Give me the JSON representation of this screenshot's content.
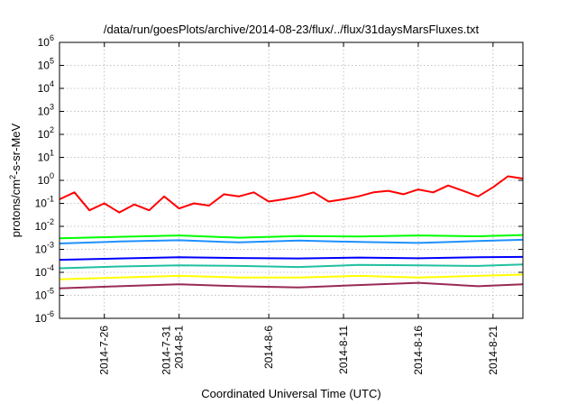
{
  "chart_data": {
    "type": "line",
    "title": "/data/run/goesPlots/archive/2014-08-23/flux/../flux/31daysMarsFluxes.txt",
    "xlabel": "Coordinated Universal Time (UTC)",
    "ylabel_main": "protons/cm",
    "ylabel_sup": "2",
    "ylabel_rest": "-s-sr-MeV",
    "xlim": [
      "2014-07-23",
      "2014-08-23"
    ],
    "ylim": [
      1e-06,
      1000000.0
    ],
    "y_scale": "log",
    "grid": true,
    "y_tick_labels": [
      {
        "base": "10",
        "exp": "-6",
        "value": 1e-06
      },
      {
        "base": "10",
        "exp": "-5",
        "value": 1e-05
      },
      {
        "base": "10",
        "exp": "-4",
        "value": 0.0001
      },
      {
        "base": "10",
        "exp": "-3",
        "value": 0.001
      },
      {
        "base": "10",
        "exp": "-2",
        "value": 0.01
      },
      {
        "base": "10",
        "exp": "-1",
        "value": 0.1
      },
      {
        "base": "10",
        "exp": "0",
        "value": 1
      },
      {
        "base": "10",
        "exp": "1",
        "value": 10
      },
      {
        "base": "10",
        "exp": "2",
        "value": 100
      },
      {
        "base": "10",
        "exp": "3",
        "value": 1000
      },
      {
        "base": "10",
        "exp": "4",
        "value": 10000
      },
      {
        "base": "10",
        "exp": "5",
        "value": 100000
      },
      {
        "base": "10",
        "exp": "6",
        "value": 1000000
      }
    ],
    "x_tick_labels": [
      {
        "date": "2014-07-26",
        "lines": [
          "2014-7-26"
        ]
      },
      {
        "date": "2014-07-31",
        "lines": [
          "2014-7-31",
          "2014-8-1"
        ]
      },
      {
        "date": "2014-08-06",
        "lines": [
          "2014-8-6"
        ]
      },
      {
        "date": "2014-08-11",
        "lines": [
          "2014-8-11"
        ]
      },
      {
        "date": "2014-08-16",
        "lines": [
          "2014-8-16"
        ]
      },
      {
        "date": "2014-08-21",
        "lines": [
          "2014-8-21"
        ]
      }
    ],
    "series": [
      {
        "color": "#ff0000",
        "x": [
          "2014-07-23",
          "2014-07-24",
          "2014-07-25",
          "2014-07-26",
          "2014-07-27",
          "2014-07-28",
          "2014-07-29",
          "2014-07-30",
          "2014-07-31",
          "2014-08-01",
          "2014-08-02",
          "2014-08-03",
          "2014-08-04",
          "2014-08-05",
          "2014-08-06",
          "2014-08-07",
          "2014-08-08",
          "2014-08-09",
          "2014-08-10",
          "2014-08-11",
          "2014-08-12",
          "2014-08-13",
          "2014-08-14",
          "2014-08-15",
          "2014-08-16",
          "2014-08-17",
          "2014-08-18",
          "2014-08-19",
          "2014-08-20",
          "2014-08-21",
          "2014-08-22",
          "2014-08-23"
        ],
        "y": [
          0.15,
          0.3,
          0.05,
          0.1,
          0.04,
          0.09,
          0.05,
          0.2,
          0.06,
          0.1,
          0.08,
          0.25,
          0.2,
          0.3,
          0.12,
          0.15,
          0.2,
          0.3,
          0.12,
          0.15,
          0.2,
          0.3,
          0.35,
          0.25,
          0.4,
          0.3,
          0.6,
          0.35,
          0.2,
          0.5,
          1.5,
          1.2
        ]
      },
      {
        "color": "#00ff00",
        "x": [
          "2014-07-23",
          "2014-07-27",
          "2014-07-31",
          "2014-08-04",
          "2014-08-08",
          "2014-08-12",
          "2014-08-16",
          "2014-08-20",
          "2014-08-23"
        ],
        "y": [
          0.003,
          0.0035,
          0.004,
          0.0032,
          0.0038,
          0.0036,
          0.004,
          0.0037,
          0.0042
        ]
      },
      {
        "color": "#1e90ff",
        "x": [
          "2014-07-23",
          "2014-07-27",
          "2014-07-31",
          "2014-08-04",
          "2014-08-08",
          "2014-08-12",
          "2014-08-16",
          "2014-08-20",
          "2014-08-23"
        ],
        "y": [
          0.0018,
          0.0022,
          0.0025,
          0.002,
          0.0024,
          0.0021,
          0.0019,
          0.0023,
          0.0026
        ]
      },
      {
        "color": "#0000ff",
        "x": [
          "2014-07-23",
          "2014-07-27",
          "2014-07-31",
          "2014-08-04",
          "2014-08-08",
          "2014-08-12",
          "2014-08-16",
          "2014-08-20",
          "2014-08-23"
        ],
        "y": [
          0.00035,
          0.0004,
          0.00045,
          0.00042,
          0.0004,
          0.00044,
          0.00041,
          0.00045,
          0.00047
        ]
      },
      {
        "color": "#20c0a0",
        "x": [
          "2014-07-23",
          "2014-07-27",
          "2014-07-31",
          "2014-08-04",
          "2014-08-08",
          "2014-08-12",
          "2014-08-16",
          "2014-08-20",
          "2014-08-23"
        ],
        "y": [
          0.00015,
          0.00018,
          0.0002,
          0.00019,
          0.00017,
          0.00021,
          0.0002,
          0.00019,
          0.00022
        ]
      },
      {
        "color": "#ffff00",
        "x": [
          "2014-07-23",
          "2014-07-27",
          "2014-07-31",
          "2014-08-04",
          "2014-08-08",
          "2014-08-12",
          "2014-08-16",
          "2014-08-20",
          "2014-08-23"
        ],
        "y": [
          5e-05,
          6e-05,
          7e-05,
          6e-05,
          6e-05,
          7e-05,
          6e-05,
          7e-05,
          8e-05
        ]
      },
      {
        "color": "#992a55",
        "x": [
          "2014-07-23",
          "2014-07-27",
          "2014-07-31",
          "2014-08-04",
          "2014-08-08",
          "2014-08-12",
          "2014-08-16",
          "2014-08-20",
          "2014-08-23"
        ],
        "y": [
          2e-05,
          2.5e-05,
          3e-05,
          2.5e-05,
          2.2e-05,
          2.8e-05,
          3.5e-05,
          2.5e-05,
          3e-05
        ]
      }
    ]
  }
}
